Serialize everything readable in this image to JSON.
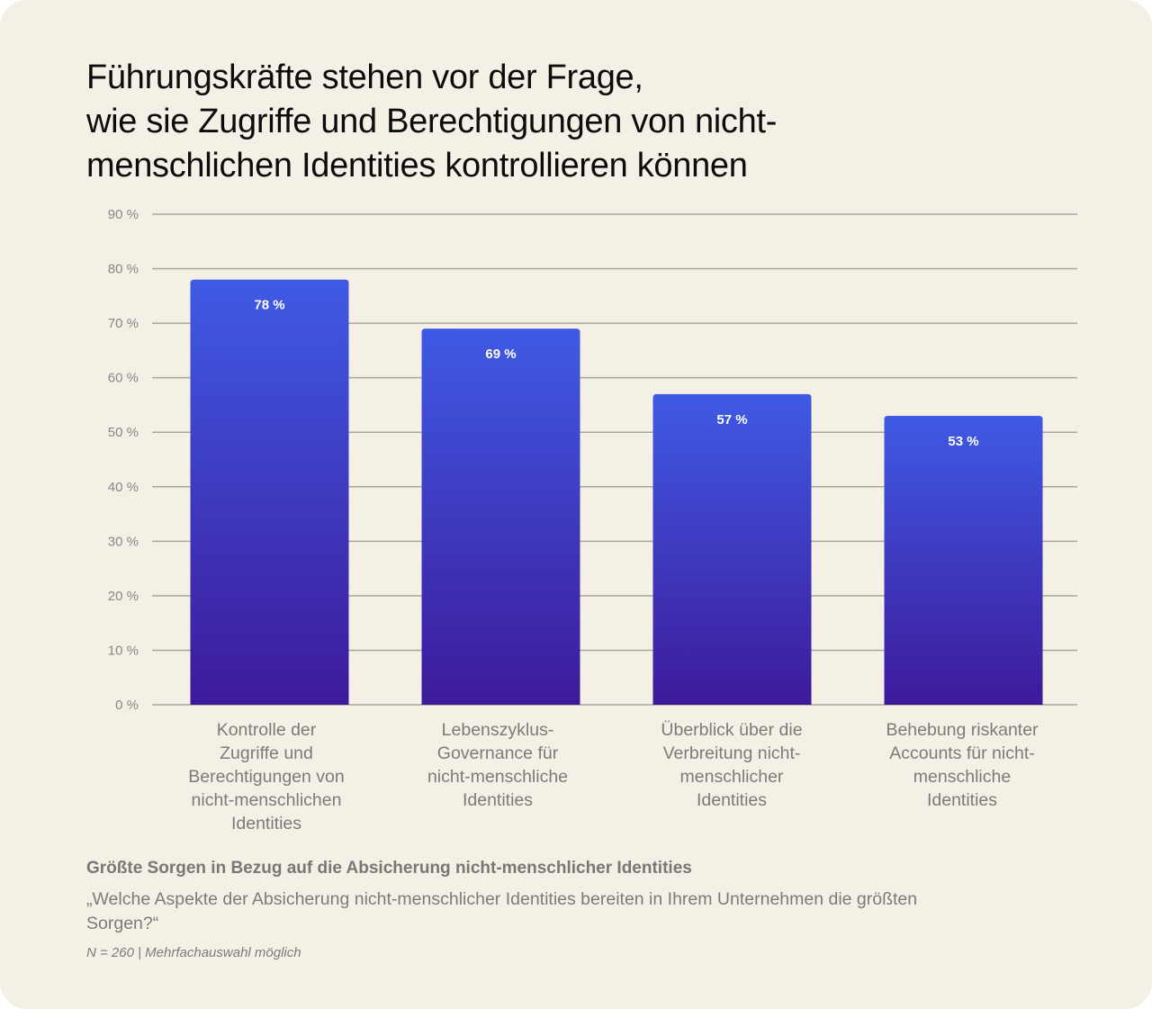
{
  "header": {
    "title_lines": [
      "Führungskräfte stehen vor der Frage,",
      "wie sie Zugriffe und Berechtigungen von nicht-",
      "menschlichen Identities kontrollieren können"
    ]
  },
  "colors": {
    "background": "#f4f0e6",
    "bar_top": "#3f5ae4",
    "bar_bottom": "#3d1a9a",
    "grid": "#a9a6a0",
    "axis_text": "#8a8783"
  },
  "chart_data": {
    "type": "bar",
    "title": "Größte Sorgen in Bezug auf die Absicherung nicht-menschlicher Identities",
    "xlabel": "",
    "ylabel": "",
    "ylim": [
      0,
      90
    ],
    "grid": true,
    "yticks": [
      0,
      10,
      20,
      30,
      40,
      50,
      60,
      70,
      80,
      90
    ],
    "ytick_labels": [
      "0 %",
      "10 %",
      "20 %",
      "30 %",
      "40 %",
      "50 %",
      "60 %",
      "70 %",
      "80 %",
      "90 %"
    ],
    "categories": [
      "Kontrolle der Zugriffe und Berechtigungen von nicht-menschlichen Identities",
      "Lebenszyklus-Governance für nicht-menschliche Identities",
      "Überblick über die Verbreitung nicht-menschlicher Identities",
      "Behebung riskanter Accounts für nicht-menschliche Identities"
    ],
    "category_lines": [
      [
        "Kontrolle der",
        "Zugriffe und",
        "Berechtigungen von",
        "nicht-menschlichen",
        "Identities"
      ],
      [
        "Lebenszyklus-",
        "Governance für",
        "nicht-menschliche",
        "Identities"
      ],
      [
        "Überblick über die",
        "Verbreitung nicht-",
        "menschlicher",
        "Identities"
      ],
      [
        "Behebung riskanter",
        "Accounts für nicht-",
        "menschliche",
        "Identities"
      ]
    ],
    "values": [
      78,
      69,
      57,
      53
    ],
    "data_labels": [
      "78 %",
      "69 %",
      "57 %",
      "53 %"
    ],
    "unit": "%"
  },
  "footer": {
    "subtitle": "Größte Sorgen in Bezug auf die Absicherung nicht-menschlicher Identities",
    "question_lines": [
      "„Welche Aspekte der Absicherung nicht-menschlicher Identities bereiten in Ihrem Unternehmen die größten",
      "Sorgen?“"
    ],
    "note": "N = 260 | Mehrfachauswahl möglich"
  }
}
